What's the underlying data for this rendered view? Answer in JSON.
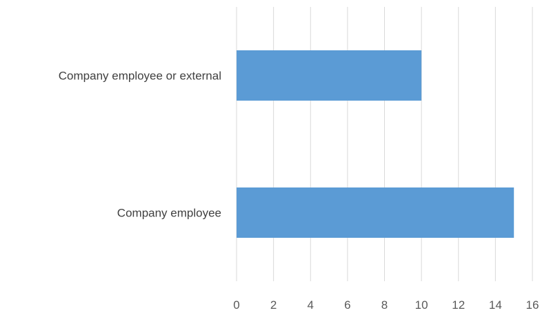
{
  "chart_data": {
    "type": "bar",
    "orientation": "horizontal",
    "categories": [
      "Company employee or external",
      "Company employee"
    ],
    "values": [
      10,
      15
    ],
    "xlim": [
      0,
      16
    ],
    "xticks": [
      "0",
      "2",
      "4",
      "6",
      "8",
      "10",
      "12",
      "14",
      "16"
    ],
    "title": "",
    "xlabel": "",
    "ylabel": "",
    "grid": "vertical",
    "bar_color": "#5b9bd5",
    "grid_color": "#d9d9d9",
    "legend": "none"
  }
}
